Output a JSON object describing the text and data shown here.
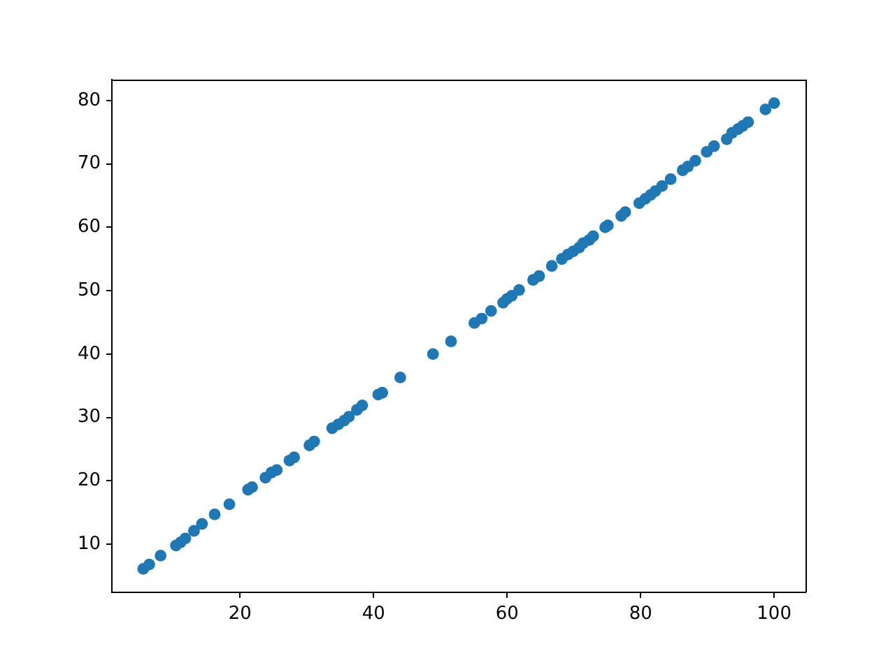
{
  "chart_data": {
    "type": "scatter",
    "x": [
      5.5,
      6.4,
      8.1,
      10.4,
      11.1,
      11.8,
      13.1,
      14.3,
      16.2,
      18.4,
      21.2,
      21.8,
      23.8,
      24.7,
      25.5,
      27.4,
      28.1,
      30.4,
      31.1,
      33.8,
      34.7,
      35.6,
      36.3,
      37.5,
      38.3,
      40.7,
      41.3,
      44.0,
      48.9,
      51.6,
      55.1,
      56.2,
      57.6,
      59.4,
      60.0,
      60.7,
      61.8,
      63.9,
      64.8,
      66.7,
      68.2,
      69.1,
      69.9,
      70.8,
      71.4,
      72.3,
      72.9,
      74.7,
      75.1,
      77.1,
      77.7,
      79.8,
      80.7,
      81.5,
      82.2,
      83.2,
      84.5,
      86.3,
      87.1,
      88.2,
      89.9,
      91.0,
      92.9,
      93.7,
      94.6,
      95.3,
      96.1,
      98.7,
      100.0
    ],
    "values": [
      6.1,
      6.8,
      8.2,
      9.8,
      10.3,
      10.9,
      12.1,
      13.2,
      14.7,
      16.3,
      18.6,
      19.0,
      20.5,
      21.3,
      21.7,
      23.2,
      23.7,
      25.6,
      26.2,
      28.3,
      28.9,
      29.5,
      30.1,
      31.2,
      31.9,
      33.6,
      33.9,
      36.3,
      40.0,
      42.0,
      44.9,
      45.6,
      46.8,
      48.1,
      48.7,
      49.2,
      50.1,
      51.7,
      52.3,
      53.9,
      55.0,
      55.7,
      56.2,
      56.8,
      57.5,
      58.0,
      58.6,
      60.0,
      60.3,
      61.8,
      62.4,
      63.8,
      64.5,
      65.1,
      65.7,
      66.5,
      67.6,
      69.0,
      69.6,
      70.5,
      71.9,
      72.8,
      73.9,
      74.9,
      75.5,
      76.0,
      76.6,
      78.6,
      79.6
    ],
    "color": "#1f77b4",
    "marker": "circle",
    "xlim": [
      0.8,
      104.7
    ],
    "ylim": [
      2.4,
      83.3
    ],
    "xticks": [
      20,
      40,
      60,
      80,
      100
    ],
    "yticks": [
      10,
      20,
      30,
      40,
      50,
      60,
      70,
      80
    ]
  }
}
